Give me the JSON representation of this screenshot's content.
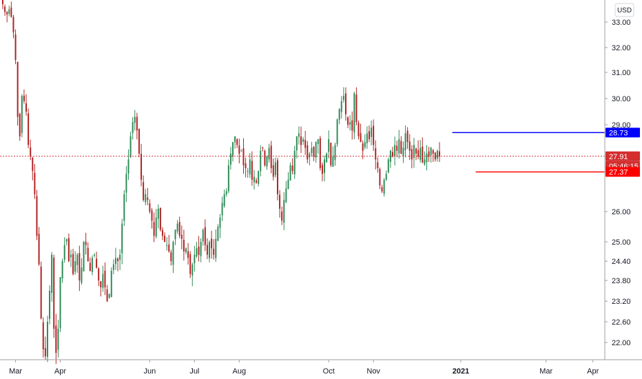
{
  "currency_button": "USD",
  "colors": {
    "up": "#26a69a",
    "down": "#ef5350",
    "up_body": "#2e8b57",
    "down_body": "#b22222",
    "resistance": "#0000ff",
    "support": "#ff0000",
    "last_price": "#d32f2f",
    "axis_text": "#131722",
    "axis_line": "#9e9e9e"
  },
  "chart_data": {
    "type": "candlestick",
    "title": "",
    "xlabel": "",
    "ylabel": "",
    "ylim": [
      21.5,
      33.8
    ],
    "y_ticks": [
      {
        "label": "33.00",
        "value": 33.0
      },
      {
        "label": "32.00",
        "value": 32.0
      },
      {
        "label": "31.00",
        "value": 31.0
      },
      {
        "label": "30.00",
        "value": 30.0
      },
      {
        "label": "29.00",
        "value": 29.0
      },
      {
        "label": "26.00",
        "value": 26.0
      },
      {
        "label": "25.00",
        "value": 25.0
      },
      {
        "label": "24.40",
        "value": 24.4
      },
      {
        "label": "23.80",
        "value": 23.8
      },
      {
        "label": "23.20",
        "value": 23.2
      },
      {
        "label": "22.60",
        "value": 22.6
      },
      {
        "label": "22.00",
        "value": 22.0
      }
    ],
    "x_ticks": [
      {
        "label": "Mar",
        "index": 6
      },
      {
        "label": "Apr",
        "index": 27
      },
      {
        "label": "Jun",
        "index": 69
      },
      {
        "label": "Jul",
        "index": 90
      },
      {
        "label": "Aug",
        "index": 111
      },
      {
        "label": "Oct",
        "index": 153
      },
      {
        "label": "Nov",
        "index": 174
      },
      {
        "label": "2021",
        "index": 215,
        "bold": true
      },
      {
        "label": "Mar",
        "index": 255
      },
      {
        "label": "Apr",
        "index": 277
      }
    ],
    "candles_visible": 240,
    "index_range": [
      0,
      280
    ],
    "last_price": 27.91,
    "countdown": "05:46:15",
    "resistance": {
      "value": 28.73,
      "from_index": 211
    },
    "support": {
      "value": 27.37,
      "from_index": 222
    },
    "closes": [
      33.7,
      33.4,
      33.3,
      33.5,
      33.2,
      32.6,
      31.5,
      29.3,
      28.6,
      30.1,
      29.9,
      29.5,
      28.3,
      27.9,
      27.4,
      26.6,
      25.2,
      24.3,
      22.7,
      21.8,
      21.6,
      22.6,
      23.5,
      24.6,
      22.4,
      21.7,
      22.4,
      23.9,
      24.4,
      24.9,
      25.1,
      24.4,
      24.6,
      24.0,
      24.4,
      24.6,
      23.8,
      24.2,
      25.0,
      24.9,
      24.4,
      24.1,
      24.5,
      24.6,
      24.2,
      23.8,
      23.6,
      24.0,
      23.6,
      23.2,
      23.4,
      24.1,
      24.3,
      24.5,
      24.4,
      24.6,
      25.6,
      26.6,
      27.3,
      27.8,
      28.6,
      29.1,
      29.3,
      28.8,
      28.0,
      27.1,
      26.4,
      26.6,
      26.4,
      26.0,
      25.7,
      25.2,
      25.8,
      26.1,
      25.4,
      25.2,
      25.0,
      24.9,
      24.7,
      24.4,
      25.0,
      25.4,
      25.6,
      25.2,
      25.1,
      24.7,
      24.8,
      24.5,
      24.0,
      24.3,
      24.6,
      24.8,
      24.6,
      25.0,
      25.4,
      24.9,
      24.6,
      25.0,
      24.8,
      24.6,
      25.1,
      25.5,
      25.8,
      26.3,
      26.6,
      26.7,
      27.6,
      28.0,
      28.4,
      28.6,
      28.3,
      28.0,
      28.1,
      27.6,
      27.5,
      27.4,
      27.8,
      27.1,
      27.2,
      27.0,
      27.4,
      28.1,
      28.2,
      27.6,
      27.9,
      28.2,
      27.5,
      27.2,
      27.7,
      26.6,
      26.1,
      25.7,
      26.4,
      26.8,
      27.1,
      27.6,
      27.4,
      28.1,
      28.6,
      28.7,
      28.3,
      28.5,
      28.2,
      27.8,
      28.0,
      28.2,
      27.9,
      28.4,
      28.5,
      27.5,
      27.3,
      27.8,
      28.0,
      28.5,
      27.6,
      27.9,
      28.3,
      29.2,
      29.6,
      29.9,
      30.1,
      29.4,
      29.0,
      29.1,
      28.8,
      30.2,
      29.1,
      28.6,
      28.4,
      28.1,
      28.4,
      28.7,
      28.5,
      28.9,
      28.3,
      27.8,
      27.5,
      26.9,
      26.7,
      27.1,
      27.3,
      27.8,
      28.1,
      27.9,
      28.3,
      28.1,
      28.5,
      28.0,
      28.2,
      28.7,
      28.4,
      28.1,
      27.8,
      28.3,
      28.0,
      27.9,
      28.2,
      27.7,
      27.8,
      28.0,
      27.9,
      28.2,
      28.0,
      27.8,
      28.1,
      27.91
    ]
  }
}
